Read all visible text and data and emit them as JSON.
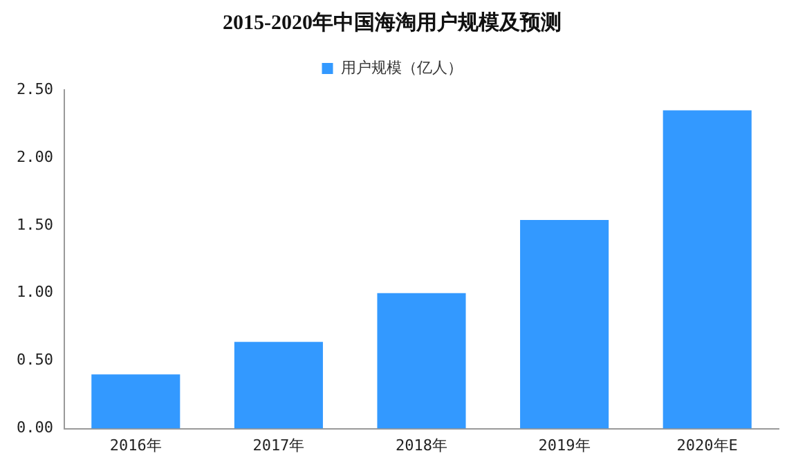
{
  "chart_data": {
    "type": "bar",
    "title": "2015-2020年中国海淘用户规模及预测",
    "categories": [
      "2016年",
      "2017年",
      "2018年",
      "2019年",
      "2020年E"
    ],
    "series": [
      {
        "name": "用户规模（亿人）",
        "color": "#3399ff",
        "values": [
          0.4,
          0.64,
          1.0,
          1.54,
          2.35
        ]
      }
    ],
    "ylim": [
      0,
      2.5
    ],
    "yticks": [
      {
        "value": 0,
        "label": "0.00"
      },
      {
        "value": 0.5,
        "label": "0.50"
      },
      {
        "value": 1,
        "label": "1.00"
      },
      {
        "value": 1.5,
        "label": "1.50"
      },
      {
        "value": 2,
        "label": "2.00"
      },
      {
        "value": 2.5,
        "label": "2.50"
      }
    ],
    "grid": false,
    "legend": "top"
  }
}
